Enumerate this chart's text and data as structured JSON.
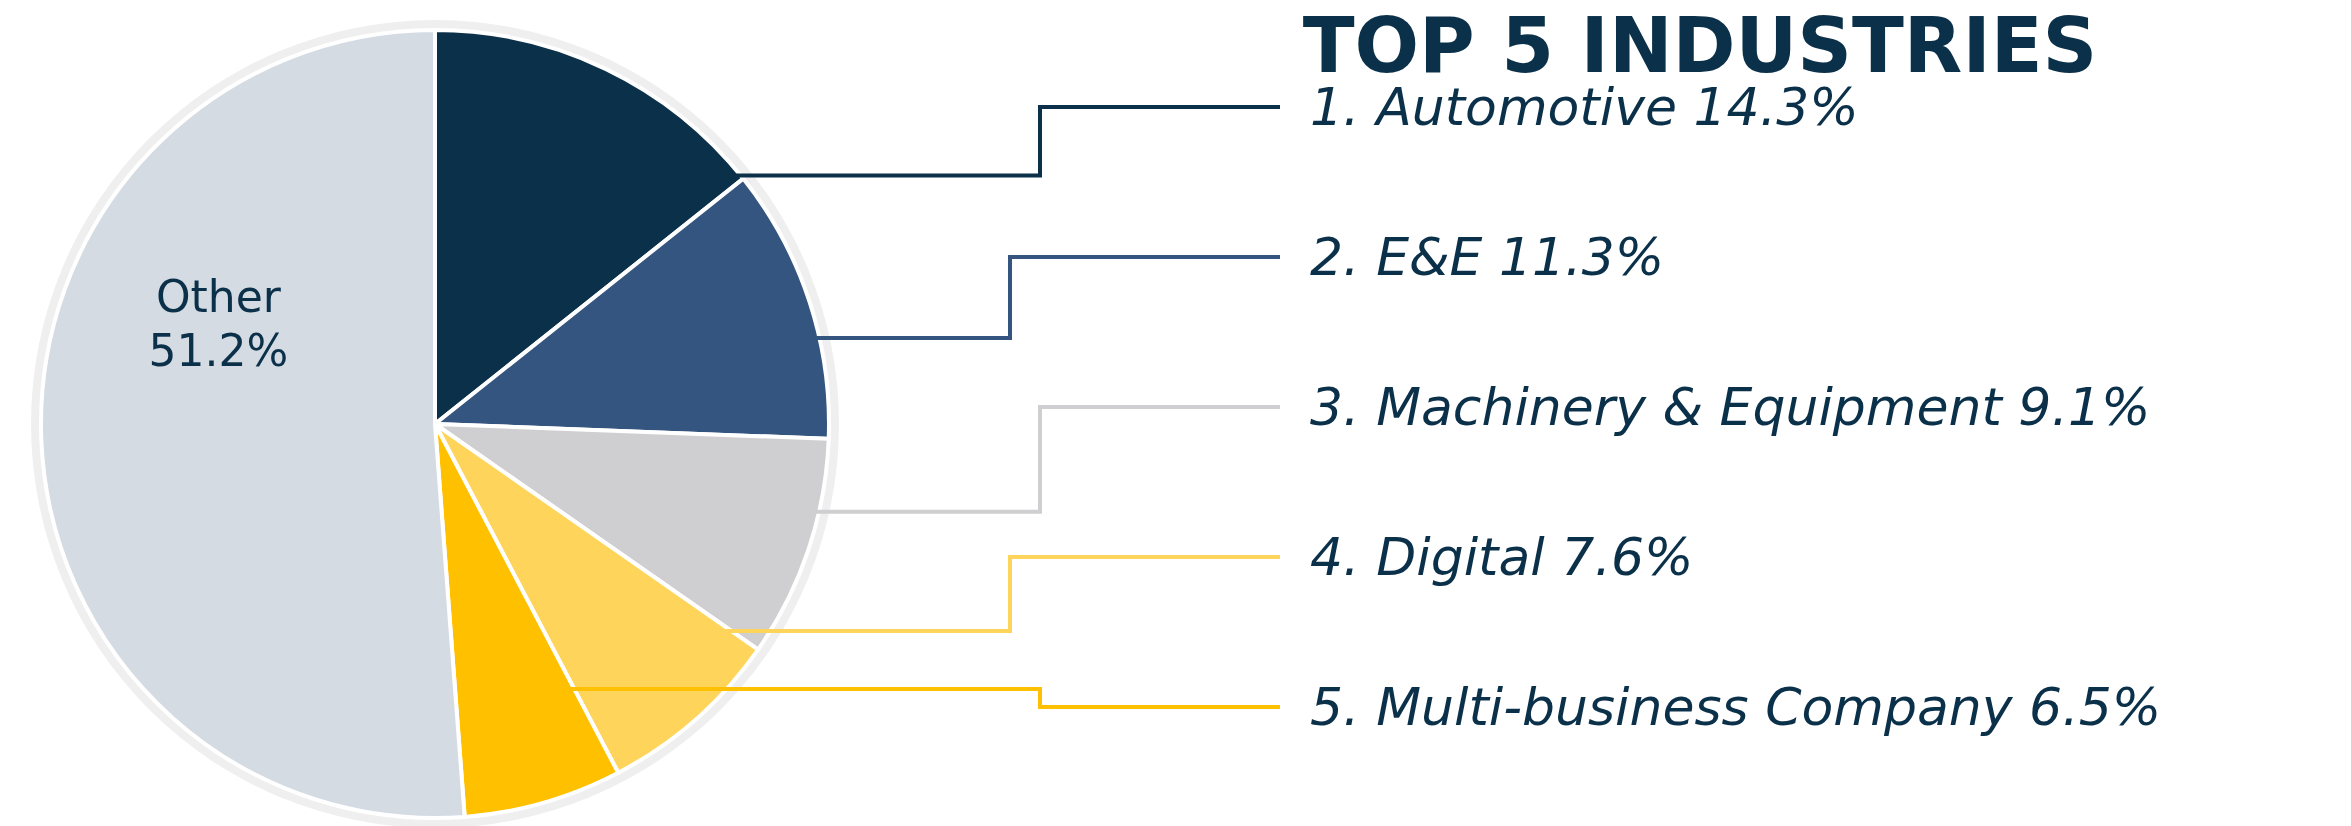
{
  "chart_data": {
    "type": "pie",
    "title": "TOP 5 INDUSTRIES",
    "categories": [
      "1. Automotive",
      "2. E&E",
      "3. Machinery & Equipment",
      "4. Digital",
      "5. Multi-business Company",
      "Other"
    ],
    "values": [
      14.3,
      11.3,
      9.1,
      7.6,
      6.5,
      51.2
    ],
    "colors": [
      "#0b3049",
      "#34557f",
      "#cfcfd1",
      "#fed45a",
      "#ffc000",
      "#d5dbe3"
    ],
    "value_labels": [
      "14.3%",
      "11.3%",
      "9.1%",
      "7.6%",
      "6.5%",
      "51.2%"
    ]
  }
}
